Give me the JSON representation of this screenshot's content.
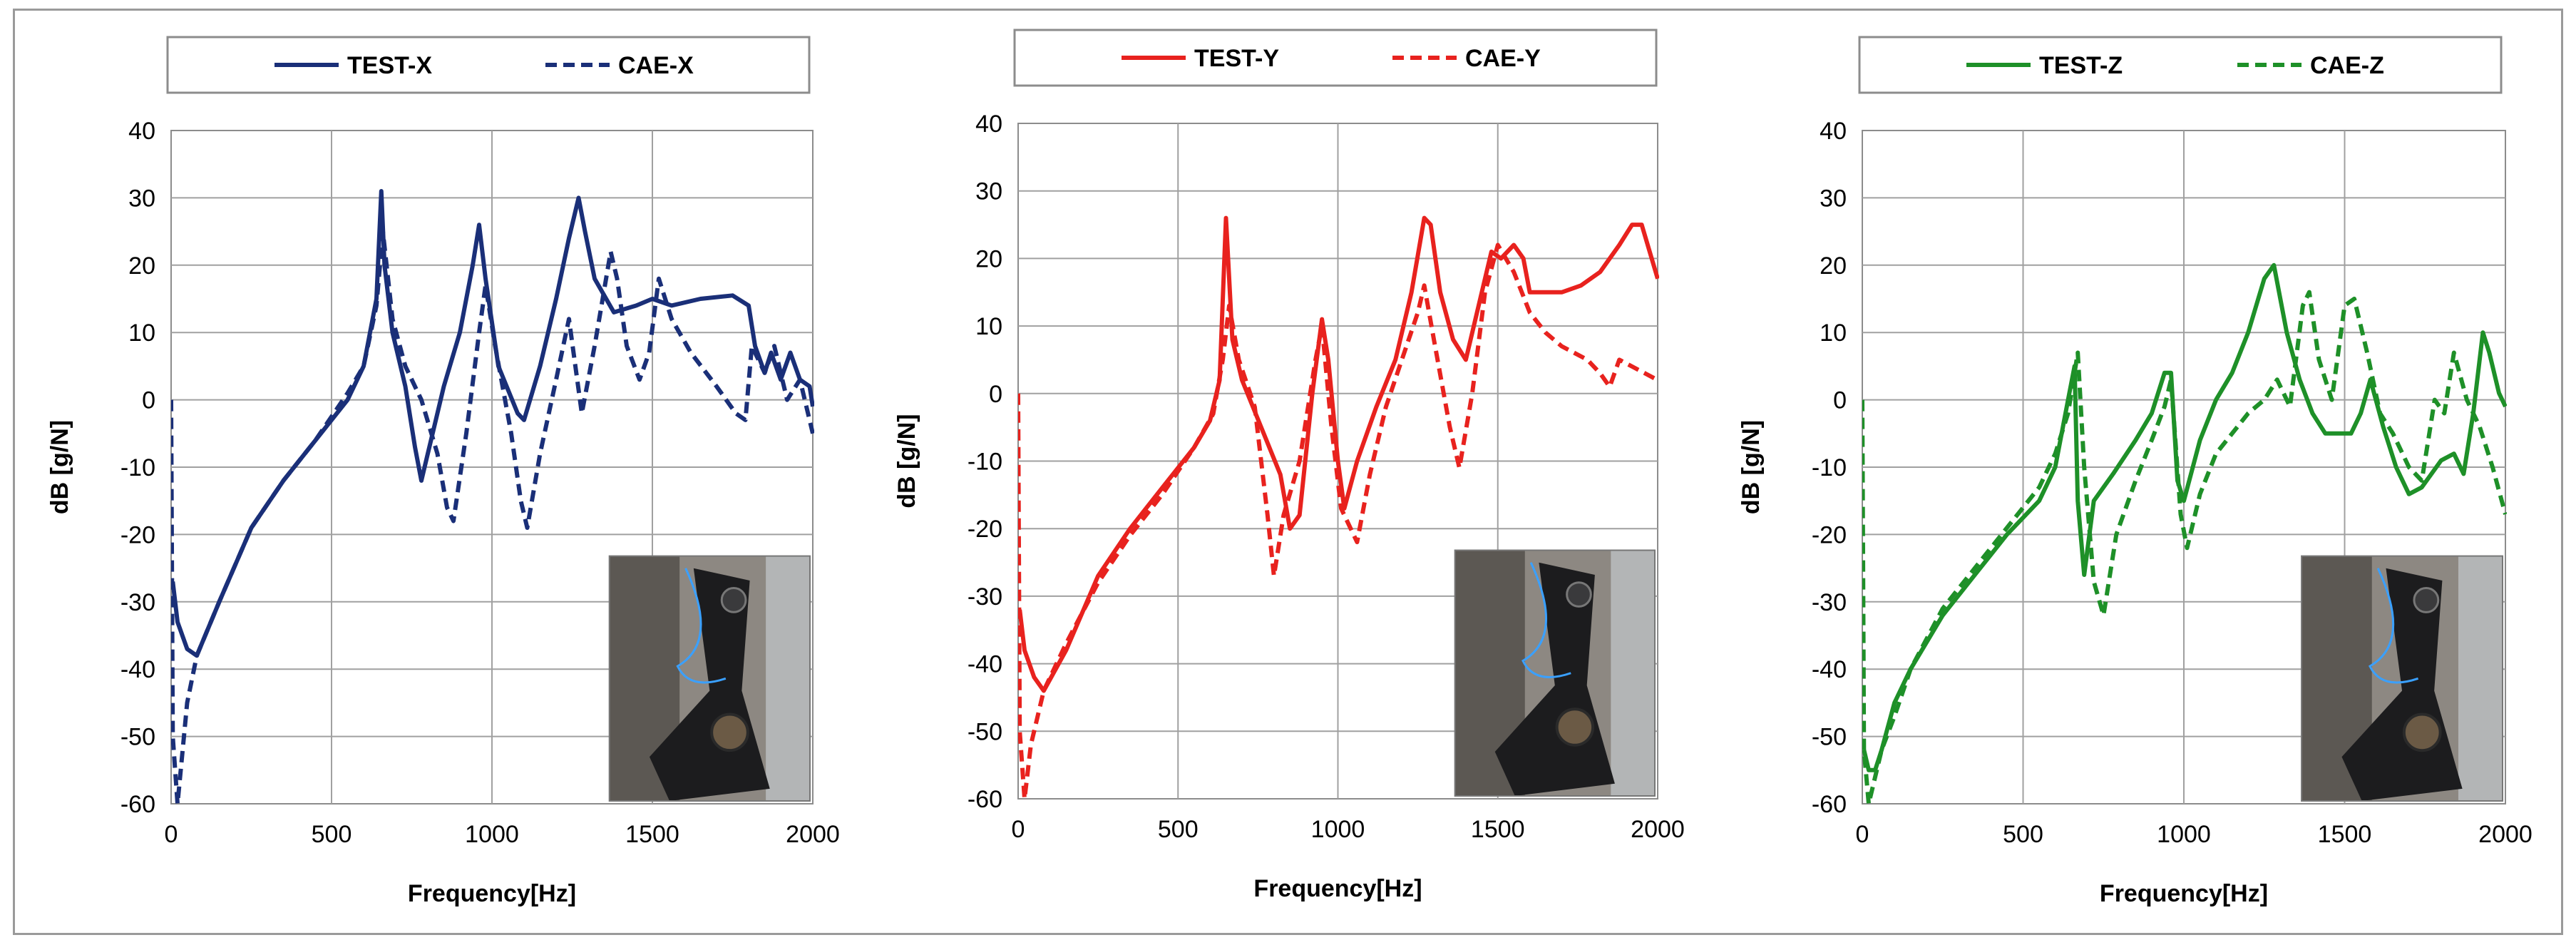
{
  "chart_data": [
    {
      "type": "line",
      "color": "#1a2f78",
      "xlabel": "Frequency[Hz]",
      "ylabel": "dB [g/N]",
      "xlim": [
        0,
        2000
      ],
      "ylim": [
        -60,
        40
      ],
      "xticks": [
        "0",
        "500",
        "1000",
        "1500",
        "2000"
      ],
      "yticks": [
        "40",
        "30",
        "20",
        "10",
        "0",
        "-10",
        "-20",
        "-30",
        "-40",
        "-50",
        "-60"
      ],
      "grid": true,
      "legend_position": "top",
      "inset_photo": "bracket-photo",
      "series": [
        {
          "name": "TEST-X",
          "style": "solid",
          "x": [
            5,
            20,
            50,
            80,
            150,
            250,
            350,
            450,
            550,
            600,
            640,
            655,
            665,
            690,
            730,
            760,
            780,
            800,
            820,
            850,
            900,
            940,
            960,
            980,
            1020,
            1080,
            1100,
            1150,
            1200,
            1240,
            1270,
            1290,
            1320,
            1380,
            1450,
            1500,
            1560,
            1650,
            1750,
            1800,
            1820,
            1850,
            1870,
            1900,
            1930,
            1960,
            1990,
            2000
          ],
          "y": [
            -27,
            -33,
            -37,
            -38,
            -30,
            -19,
            -12,
            -6,
            0,
            5,
            15,
            31,
            20,
            10,
            2,
            -7,
            -12,
            -8,
            -4,
            2,
            10,
            20,
            26,
            18,
            5,
            -2,
            -3,
            5,
            15,
            24,
            30,
            25,
            18,
            13,
            14,
            15,
            14,
            15,
            15.5,
            14,
            8,
            4,
            7,
            3,
            7,
            3,
            2,
            -1
          ]
        },
        {
          "name": "CAE-X",
          "style": "dashed",
          "x": [
            0,
            5,
            20,
            50,
            80,
            150,
            250,
            350,
            450,
            550,
            600,
            640,
            660,
            690,
            730,
            780,
            830,
            860,
            880,
            920,
            960,
            980,
            1010,
            1060,
            1090,
            1110,
            1150,
            1200,
            1240,
            1260,
            1280,
            1320,
            1370,
            1390,
            1420,
            1460,
            1490,
            1520,
            1560,
            1620,
            1700,
            1760,
            1790,
            1810,
            1850,
            1880,
            1920,
            1960,
            2000
          ],
          "y": [
            0,
            -50,
            -60,
            -45,
            -38,
            -30,
            -19,
            -12,
            -6,
            1,
            5,
            14,
            25,
            12,
            5,
            0,
            -8,
            -16,
            -18,
            -5,
            10,
            17,
            8,
            -5,
            -15,
            -19,
            -8,
            3,
            12,
            5,
            -2,
            8,
            22,
            18,
            8,
            3,
            7,
            18,
            12,
            7,
            2,
            -2,
            -3,
            8,
            4,
            8,
            0,
            3,
            -5
          ]
        }
      ]
    },
    {
      "type": "line",
      "color": "#e8221e",
      "xlabel": "Frequency[Hz]",
      "ylabel": "dB [g/N]",
      "xlim": [
        0,
        2000
      ],
      "ylim": [
        -60,
        40
      ],
      "xticks": [
        "0",
        "500",
        "1000",
        "1500",
        "2000"
      ],
      "yticks": [
        "40",
        "30",
        "20",
        "10",
        "0",
        "-10",
        "-20",
        "-30",
        "-40",
        "-50",
        "-60"
      ],
      "grid": true,
      "legend_position": "top",
      "inset_photo": "bracket-photo",
      "series": [
        {
          "name": "TEST-Y",
          "style": "solid",
          "x": [
            5,
            20,
            50,
            80,
            150,
            250,
            350,
            450,
            550,
            600,
            630,
            650,
            670,
            700,
            760,
            820,
            850,
            880,
            920,
            950,
            970,
            1000,
            1020,
            1060,
            1120,
            1180,
            1230,
            1270,
            1290,
            1320,
            1360,
            1400,
            1450,
            1480,
            1510,
            1550,
            1580,
            1600,
            1650,
            1700,
            1760,
            1820,
            1880,
            1920,
            1950,
            2000
          ],
          "y": [
            -32,
            -38,
            -42,
            -44,
            -38,
            -27,
            -20,
            -14,
            -8,
            -4,
            2,
            26,
            8,
            2,
            -5,
            -12,
            -20,
            -18,
            0,
            11,
            5,
            -10,
            -17,
            -10,
            -2,
            5,
            15,
            26,
            25,
            15,
            8,
            5,
            15,
            21,
            20,
            22,
            20,
            15,
            15,
            15,
            16,
            18,
            22,
            25,
            25,
            17
          ]
        },
        {
          "name": "CAE-Y",
          "style": "dashed",
          "x": [
            0,
            5,
            20,
            40,
            80,
            150,
            250,
            350,
            450,
            550,
            610,
            640,
            660,
            690,
            740,
            780,
            800,
            830,
            880,
            930,
            950,
            980,
            1010,
            1060,
            1100,
            1150,
            1200,
            1250,
            1270,
            1300,
            1350,
            1380,
            1420,
            1460,
            1500,
            1550,
            1600,
            1650,
            1700,
            1780,
            1820,
            1850,
            1880,
            1920,
            1960,
            2000
          ],
          "y": [
            0,
            -50,
            -60,
            -52,
            -44,
            -37,
            -28,
            -21,
            -15,
            -8,
            -3,
            5,
            13,
            5,
            -2,
            -18,
            -27,
            -18,
            -10,
            5,
            10,
            -5,
            -17,
            -22,
            -12,
            -2,
            5,
            12,
            16,
            8,
            -5,
            -11,
            0,
            15,
            22,
            18,
            12,
            9,
            7,
            5,
            3,
            1,
            5,
            4,
            3,
            2
          ]
        }
      ]
    },
    {
      "type": "line",
      "color": "#1e9028",
      "xlabel": "Frequency[Hz]",
      "ylabel": "dB [g/N]",
      "xlim": [
        0,
        2000
      ],
      "ylim": [
        -60,
        40
      ],
      "xticks": [
        "0",
        "500",
        "1000",
        "1500",
        "2000"
      ],
      "yticks": [
        "40",
        "30",
        "20",
        "10",
        "0",
        "-10",
        "-20",
        "-30",
        "-40",
        "-50",
        "-60"
      ],
      "grid": true,
      "legend_position": "top",
      "inset_photo": "bracket-photo",
      "series": [
        {
          "name": "TEST-Z",
          "style": "solid",
          "x": [
            5,
            20,
            40,
            60,
            100,
            150,
            250,
            350,
            450,
            550,
            600,
            640,
            660,
            670,
            690,
            720,
            780,
            850,
            900,
            940,
            960,
            980,
            1000,
            1050,
            1100,
            1150,
            1200,
            1250,
            1280,
            1320,
            1360,
            1400,
            1440,
            1480,
            1520,
            1550,
            1580,
            1620,
            1660,
            1700,
            1740,
            1800,
            1840,
            1870,
            1900,
            1930,
            1950,
            1980,
            2000
          ],
          "y": [
            -52,
            -55,
            -55,
            -52,
            -45,
            -40,
            -32,
            -26,
            -20,
            -15,
            -10,
            0,
            5,
            -15,
            -26,
            -15,
            -11,
            -6,
            -2,
            4,
            4,
            -12,
            -15,
            -6,
            0,
            4,
            10,
            18,
            20,
            10,
            3,
            -2,
            -5,
            -5,
            -5,
            -2,
            3,
            -4,
            -10,
            -14,
            -13,
            -9,
            -8,
            -11,
            -2,
            10,
            7,
            1,
            -1
          ]
        },
        {
          "name": "CAE-Z",
          "style": "dashed",
          "x": [
            0,
            5,
            20,
            60,
            100,
            150,
            250,
            350,
            450,
            550,
            600,
            640,
            670,
            690,
            720,
            750,
            790,
            850,
            900,
            940,
            960,
            990,
            1010,
            1050,
            1100,
            1150,
            1200,
            1250,
            1290,
            1330,
            1370,
            1390,
            1420,
            1460,
            1500,
            1530,
            1570,
            1610,
            1650,
            1700,
            1740,
            1780,
            1810,
            1840,
            1880,
            1920,
            1960,
            2000
          ],
          "y": [
            0,
            -52,
            -60,
            -52,
            -47,
            -40,
            -31,
            -25,
            -19,
            -13,
            -8,
            -2,
            7,
            -10,
            -27,
            -32,
            -20,
            -12,
            -6,
            -1,
            3,
            -17,
            -22,
            -14,
            -8,
            -5,
            -2,
            0,
            3,
            -1,
            14,
            16,
            6,
            0,
            14,
            15,
            7,
            -2,
            -5,
            -10,
            -12,
            0,
            -2,
            7,
            0,
            -4,
            -10,
            -17
          ]
        }
      ]
    }
  ]
}
